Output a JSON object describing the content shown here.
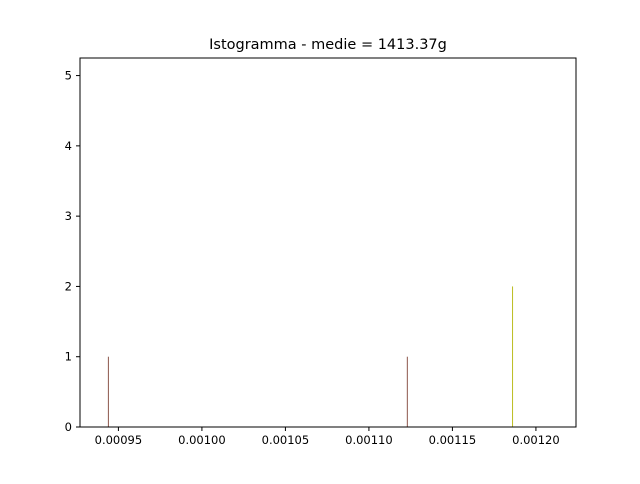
{
  "chart_data": {
    "type": "bar",
    "title": "Istogramma - medie = 1413.37g",
    "xlabel": "",
    "ylabel": "",
    "xlim": [
      0.000927,
      0.001224
    ],
    "ylim": [
      0,
      5.25
    ],
    "x_ticks": [
      0.00095,
      0.001,
      0.00105,
      0.0011,
      0.00115,
      0.0012
    ],
    "x_tick_labels": [
      "0.00095",
      "0.00100",
      "0.00105",
      "0.00110",
      "0.00115",
      "0.00120"
    ],
    "y_ticks": [
      0,
      1,
      2,
      3,
      4,
      5
    ],
    "y_tick_labels": [
      "0",
      "1",
      "2",
      "3",
      "4",
      "5"
    ],
    "grid": false,
    "bars": [
      {
        "x": 0.000944,
        "value": 1,
        "color": "#8c564b"
      },
      {
        "x": 0.001123,
        "value": 1,
        "color": "#8c564b"
      },
      {
        "x": 0.001186,
        "value": 2,
        "color": "#bcbd22"
      }
    ]
  }
}
